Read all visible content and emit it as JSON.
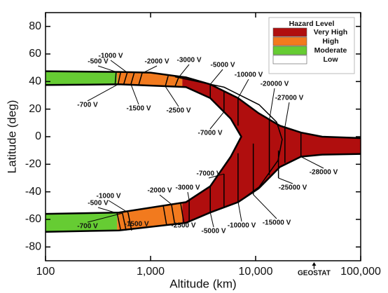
{
  "chart_data": {
    "type": "region",
    "xlabel": "Altitude (km)",
    "ylabel": "Latitude (deg)",
    "xscale": "log",
    "xlim": [
      100,
      100000
    ],
    "ylim": [
      -90,
      90
    ],
    "xticks": [
      100,
      {
        "value": 1000,
        "label": "1,000"
      },
      {
        "value": 10000,
        "label": "10,000"
      },
      {
        "value": 100000,
        "label": "100,000"
      }
    ],
    "yticks": [
      -80,
      -60,
      -40,
      -20,
      0,
      20,
      40,
      60,
      80
    ],
    "legend_title": "Hazard Level",
    "legend": "upper right",
    "series": [
      {
        "name": "Very High",
        "color": "#b00e0e",
        "range": [
          2000,
          100000
        ]
      },
      {
        "name": "High",
        "color": "#f27a1e",
        "range": [
          480,
          2000
        ]
      },
      {
        "name": "Moderate",
        "color": "#66cc33",
        "range": [
          100,
          480
        ]
      },
      {
        "name": "Low",
        "color": "#ffffff"
      }
    ],
    "band": {
      "outer_top": {
        "x": [
          100,
          500,
          1000,
          2170,
          3690,
          6800,
          10700,
          17000,
          27000,
          43000,
          100000
        ],
        "y": [
          47.5,
          47,
          46.5,
          43,
          38,
          28,
          17,
          8,
          3,
          0,
          -1
        ]
      },
      "outer_bottom": {
        "x": [
          100,
          500,
          2170,
          3690,
          6800,
          10700,
          17000,
          27000,
          43000,
          100000
        ],
        "y": [
          -69,
          -68,
          -62.5,
          -55,
          -47.5,
          -37.5,
          -22,
          -14.5,
          -13,
          -12.5
        ]
      },
      "inner": {
        "x": [
          100,
          500,
          2170,
          3690,
          5800,
          7300,
          5800,
          3690,
          2170,
          500,
          100
        ],
        "y": [
          37.5,
          38,
          36,
          28,
          13,
          0,
          -14.5,
          -36,
          -47.5,
          -55,
          -56
        ]
      }
    },
    "arcs": [
      {
        "x": [
          1710,
          5010,
          10800,
          15850,
          17900,
          16350,
          10800,
          6810
        ],
        "y": [
          43.4,
          35.9,
          23.2,
          10.6,
          -2,
          -17.2,
          -36.4,
          -47.5
        ]
      }
    ],
    "contours": [
      {
        "label": "-500 V",
        "x": [
          470,
          460
        ],
        "y": [
          47,
          38
        ]
      },
      {
        "label": "-700 V",
        "x": [
          520,
          490
        ],
        "y": [
          47,
          38
        ]
      },
      {
        "label": "-1000 V",
        "x": [
          600,
          555
        ],
        "y": [
          46.5,
          38
        ]
      },
      {
        "label": "-1500 V",
        "x": [
          700,
          650
        ],
        "y": [
          46.5,
          38
        ]
      },
      {
        "label": "-2000 V",
        "x": [
          830,
          770
        ],
        "y": [
          46,
          37.5
        ]
      },
      {
        "label": "-2500 V",
        "x": [
          1470,
          1380
        ],
        "y": [
          44,
          36.5
        ]
      },
      {
        "label": "-3000 V",
        "x": [
          1850,
          1700
        ],
        "y": [
          43,
          36
        ]
      },
      {
        "label": "-5000 V",
        "x": [
          3700,
          3700
        ],
        "y": [
          38,
          28
        ]
      },
      {
        "label": "-7000 V",
        "x": [
          5000,
          5000
        ],
        "y": [
          33,
          18
        ]
      },
      {
        "label": "-10000 V",
        "x": [
          6800,
          6800
        ],
        "y": [
          28,
          8
        ]
      },
      {
        "label": "-20000 V",
        "x": [
          13500,
          13500
        ],
        "y": [
          12,
          -28
        ]
      },
      {
        "label": "-27000 V",
        "x": [
          19000,
          19000
        ],
        "y": [
          7,
          -19
        ]
      },
      {
        "label": "-500 V",
        "x": [
          480,
          520
        ],
        "y": [
          -55.5,
          -68
        ]
      },
      {
        "label": "-700 V",
        "x": [
          540,
          585
        ],
        "y": [
          -55.5,
          -68
        ]
      },
      {
        "label": "-1000 V",
        "x": [
          610,
          660
        ],
        "y": [
          -55,
          -68
        ]
      },
      {
        "label": "-1500 V",
        "x": [
          1320,
          1420
        ],
        "y": [
          -50,
          -64
        ]
      },
      {
        "label": "-2000 V",
        "x": [
          1580,
          1700
        ],
        "y": [
          -49,
          -63.5
        ]
      },
      {
        "label": "-2500 V",
        "x": [
          1930,
          2080
        ],
        "y": [
          -48,
          -63
        ]
      },
      {
        "label": "-3000 V",
        "x": [
          2330,
          2330
        ],
        "y": [
          -46,
          -61
        ]
      },
      {
        "label": "-5000 V",
        "x": [
          3700,
          3700
        ],
        "y": [
          -36,
          -55
        ]
      },
      {
        "label": "-7000 V",
        "x": [
          5000,
          5000
        ],
        "y": [
          -27,
          -51
        ]
      },
      {
        "label": "-10000 V",
        "x": [
          6800,
          6800
        ],
        "y": [
          -12,
          -47
        ]
      },
      {
        "label": "-15000 V",
        "x": [
          9500,
          9500
        ],
        "y": [
          -5,
          -42
        ]
      },
      {
        "label": "-25000 V",
        "x": [
          16500,
          16500
        ],
        "y": [
          -10,
          -30
        ]
      },
      {
        "label": "-28000 V",
        "x": [
          27000,
          27000
        ],
        "y": [
          3,
          -14.5
        ]
      }
    ],
    "annotation": {
      "text": "GEOSTAT",
      "x": 36000
    }
  }
}
